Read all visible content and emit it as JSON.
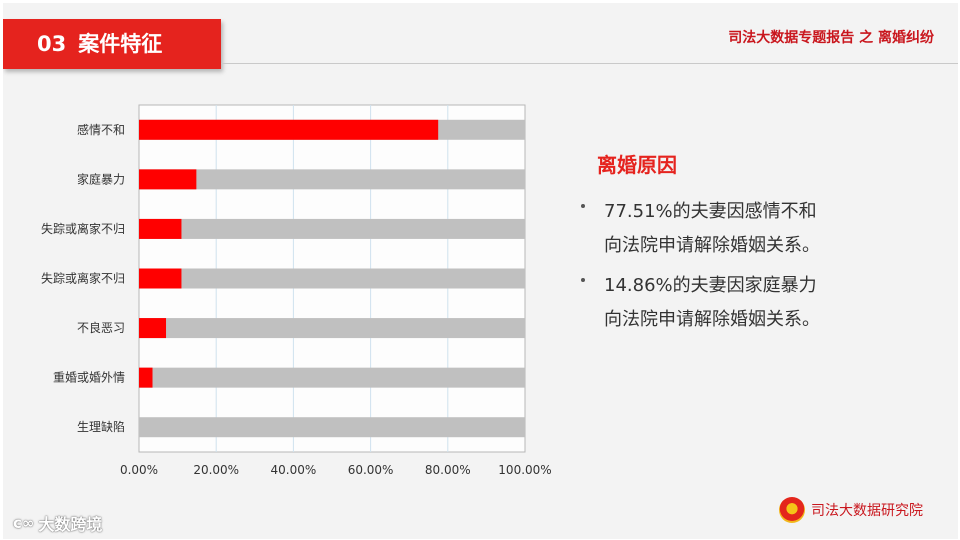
{
  "header": {
    "section_number": "03",
    "section_title": "案件特征",
    "report_title": "司法大数据专题报告 之 离婚纠纷"
  },
  "chart_data": {
    "type": "bar",
    "orientation": "horizontal",
    "categories": [
      "感情不和",
      "家庭暴力",
      "失踪或离家不归",
      "失踪或离家不归",
      "不良恶习",
      "重婚或婚外情",
      "生理缺陷"
    ],
    "values": [
      0.7751,
      0.1486,
      0.11,
      0.11,
      0.07,
      0.035,
      0.0
    ],
    "background_value": 1.0,
    "xlim": [
      0,
      1
    ],
    "x_ticks": [
      "0.00%",
      "20.00%",
      "40.00%",
      "60.00%",
      "80.00%",
      "100.00%"
    ],
    "grid": true,
    "colors": {
      "bar": "#ff0000",
      "track": "#c0c0c0"
    }
  },
  "reasons": {
    "title": "离婚原因",
    "bullets": [
      {
        "line1": "77.51%的夫妻因感情不和",
        "line2": "向法院申请解除婚姻关系。"
      },
      {
        "line1": "14.86%的夫妻因家庭暴力",
        "line2": "向法院申请解除婚姻关系。"
      }
    ]
  },
  "footer": {
    "institute": "司法大数据研究院",
    "watermark": "大数跨境"
  },
  "colors": {
    "accent": "#e5231e",
    "title_red": "#c9161d",
    "background": "#f3f3f3"
  }
}
